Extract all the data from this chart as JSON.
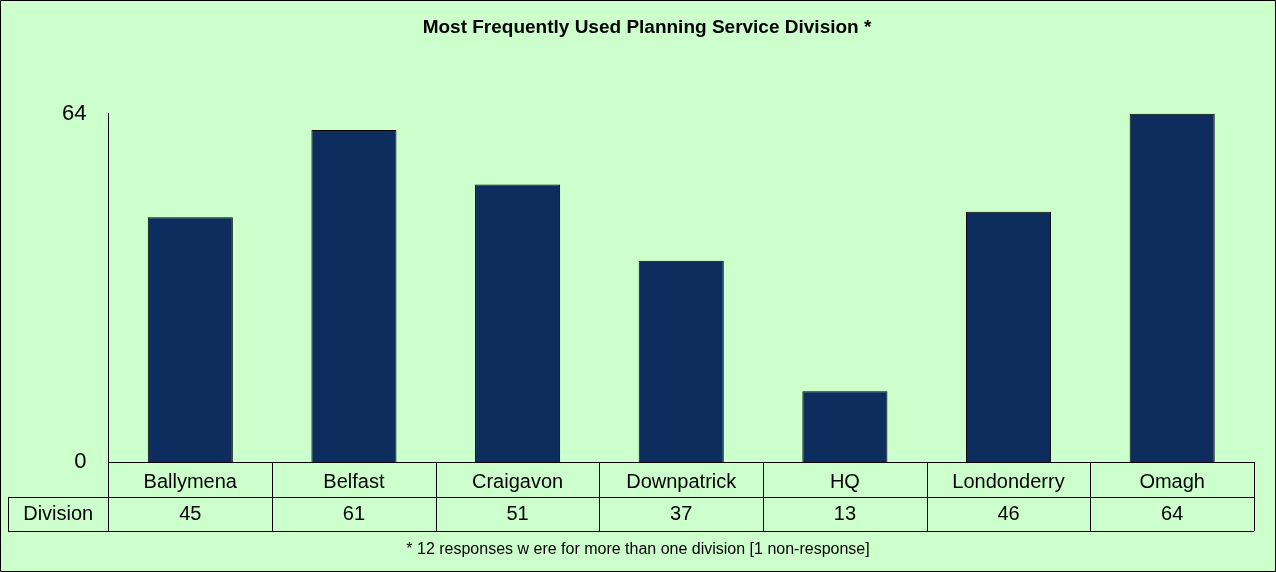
{
  "chart_data": {
    "type": "bar",
    "title": "Most Frequently Used Planning Service Division *",
    "categories": [
      "Ballymena",
      "Belfast",
      "Craigavon",
      "Downpatrick",
      "HQ",
      "Londonderry",
      "Omagh"
    ],
    "series": [
      {
        "name": "Division",
        "color": "#0c2d5e",
        "values": [
          45,
          61,
          51,
          37,
          13,
          46,
          64
        ]
      }
    ],
    "ylim": [
      0,
      64
    ],
    "yticks": [
      0,
      64
    ],
    "grid": false,
    "legend": false,
    "data_labels": true,
    "annotations": [
      "* 12 responses w ere for more than one division [1 non-response]"
    ]
  }
}
